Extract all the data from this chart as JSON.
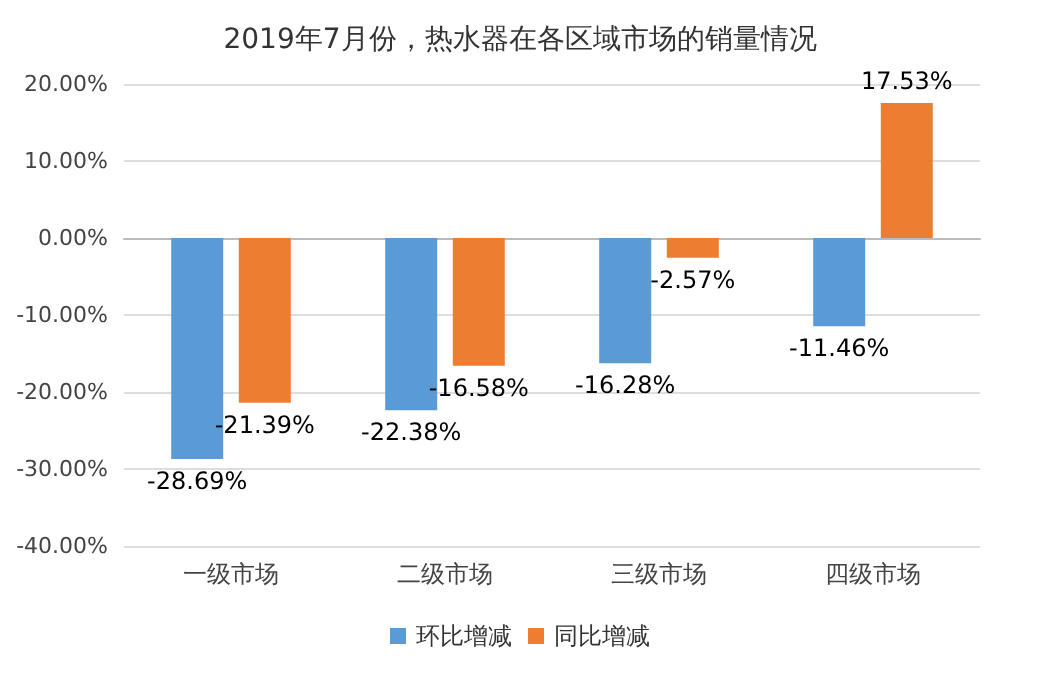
{
  "chart_data": {
    "type": "bar",
    "title": "2019年7月份，热水器在各区域市场的销量情况",
    "categories": [
      "一级市场",
      "二级市场",
      "三级市场",
      "四级市场"
    ],
    "series": [
      {
        "name": "环比增减",
        "color": "#5b9bd5",
        "values": [
          -28.69,
          -22.38,
          -16.28,
          -11.46
        ],
        "value_labels": [
          "-28.69%",
          "-22.38%",
          "-16.28%",
          "-11.46%"
        ]
      },
      {
        "name": "同比增减",
        "color": "#ed7d31",
        "values": [
          -21.39,
          -16.58,
          -2.57,
          17.53
        ],
        "value_labels": [
          "-21.39%",
          "-16.58%",
          "-2.57%",
          "17.53%"
        ]
      }
    ],
    "ylim": [
      -40,
      20
    ],
    "yticks": [
      {
        "value": -40,
        "label": "-40.00%"
      },
      {
        "value": -30,
        "label": "-30.00%"
      },
      {
        "value": -20,
        "label": "-20.00%"
      },
      {
        "value": -10,
        "label": "-10.00%"
      },
      {
        "value": 0,
        "label": "0.00%"
      },
      {
        "value": 10,
        "label": "10.00%"
      },
      {
        "value": 20,
        "label": "20.00%"
      }
    ],
    "grid": "y",
    "legend": "bottom"
  }
}
